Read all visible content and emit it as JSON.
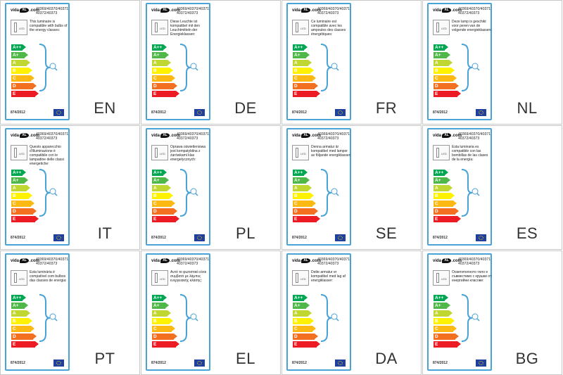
{
  "product_codes": [
    "40369/40370/40371",
    "40372/40373"
  ],
  "regulation": "874/2012",
  "logo_text": "vida",
  "logo_suffix": ".com",
  "energy_classes": [
    {
      "label": "A++",
      "color": "#00a651"
    },
    {
      "label": "A+",
      "color": "#50b848"
    },
    {
      "label": "A",
      "color": "#bfd730"
    },
    {
      "label": "B",
      "color": "#fff200"
    },
    {
      "label": "C",
      "color": "#fdb913"
    },
    {
      "label": "D",
      "color": "#f37021"
    },
    {
      "label": "E",
      "color": "#ed1c24"
    }
  ],
  "labels": [
    {
      "lang": "EN",
      "text": "This luminaire is compatible with bulbs of the energy classes:"
    },
    {
      "lang": "DE",
      "text": "Diese Leuchte ist kompatibel mit den Leuchtmitteln der Energieklassen:"
    },
    {
      "lang": "FR",
      "text": "Ce luminaire est compatible avec les ampoules des classes énergétiques:"
    },
    {
      "lang": "NL",
      "text": "Deze lamp is geschikt voor peren van de volgende energieklassen:"
    },
    {
      "lang": "IT",
      "text": "Questo apparecchio d'illuminazione è compatibile con le lampadine delle classi energetiche:"
    },
    {
      "lang": "PL",
      "text": "Oprawa oświetleniowa jest kompatybilna z żarówkami klas energetycznych:"
    },
    {
      "lang": "SE",
      "text": "Denna armatur är kompatibel med lampor av följande energiklasser:"
    },
    {
      "lang": "ES",
      "text": "Esta luminaria es compatible con las bombillas de las clases de la energía:"
    },
    {
      "lang": "PT",
      "text": "Esta luminária é compatível com bulbos das classes de energia:"
    },
    {
      "lang": "EL",
      "text": "Αυτό το φωτιστικό είναι συμβατό με λάμπες ενεργειακής κλάσης:"
    },
    {
      "lang": "DA",
      "text": "Dette armatur er kompatibel med lag af energiklasser:"
    },
    {
      "lang": "BG",
      "text": "Осветителното тяло е съвместимо с крушки от енергийни класове:"
    }
  ]
}
